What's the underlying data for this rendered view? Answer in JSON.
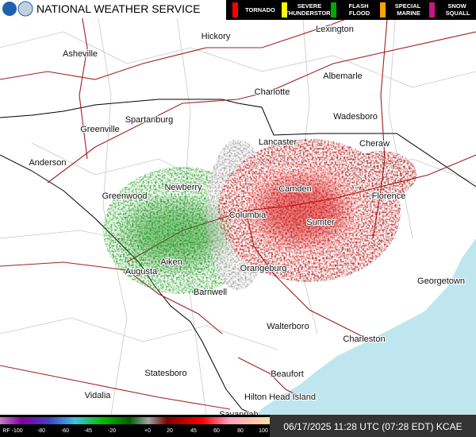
{
  "header": {
    "title": "NATIONAL WEATHER SERVICE"
  },
  "warnings": [
    {
      "label": "TORNADO",
      "color": "#ff0000"
    },
    {
      "label": "SEVERE THUNDERSTORM",
      "color": "#ffff00"
    },
    {
      "label": "FLASH FLOOD",
      "color": "#00aa00"
    },
    {
      "label": "SPECIAL MARINE",
      "color": "#ffa500"
    },
    {
      "label": "SNOW SQUALL",
      "color": "#c71585"
    }
  ],
  "cities": [
    "Lexington",
    "Hickory",
    "Asheville",
    "Albemarle",
    "Charlotte",
    "Wadesboro",
    "Spartanburg",
    "Greenville",
    "Lancaster",
    "Cheraw",
    "Anderson",
    "Newberry",
    "Camden",
    "Florence",
    "Greenwood",
    "Columbia",
    "Sumter",
    "Aiken",
    "Augusta",
    "Orangeburg",
    "Barnwell",
    "Georgetown",
    "Walterboro",
    "Charleston",
    "Statesboro",
    "Beaufort",
    "Hilton Head Island",
    "Vidalia",
    "Savannah"
  ],
  "colorbar": {
    "labels": [
      "RF -100",
      "-80",
      "-60",
      "-45",
      "-20",
      "+0",
      "20",
      "45",
      "60",
      "80",
      "100"
    ]
  },
  "timestamp": "06/17/2025 11:28 UTC (07:28 EDT) KCAE"
}
